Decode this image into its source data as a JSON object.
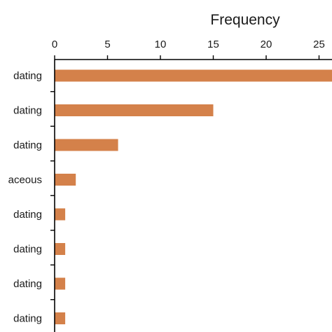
{
  "chart_data": {
    "type": "bar",
    "orientation": "horizontal",
    "title": "",
    "xlabel": "Frequency",
    "ylabel": "",
    "xlim": [
      0,
      26.5
    ],
    "x_ticks": [
      0,
      5,
      10,
      15,
      20,
      25
    ],
    "categories": [
      "dating",
      "dating",
      "dating",
      "aceous",
      "dating",
      "dating",
      "dating",
      "dating"
    ],
    "values": [
      27,
      15,
      6,
      2,
      1,
      1,
      1,
      1
    ],
    "bar_color": "#d4814a",
    "axis_position": "top",
    "grid": false,
    "legend": "none"
  }
}
